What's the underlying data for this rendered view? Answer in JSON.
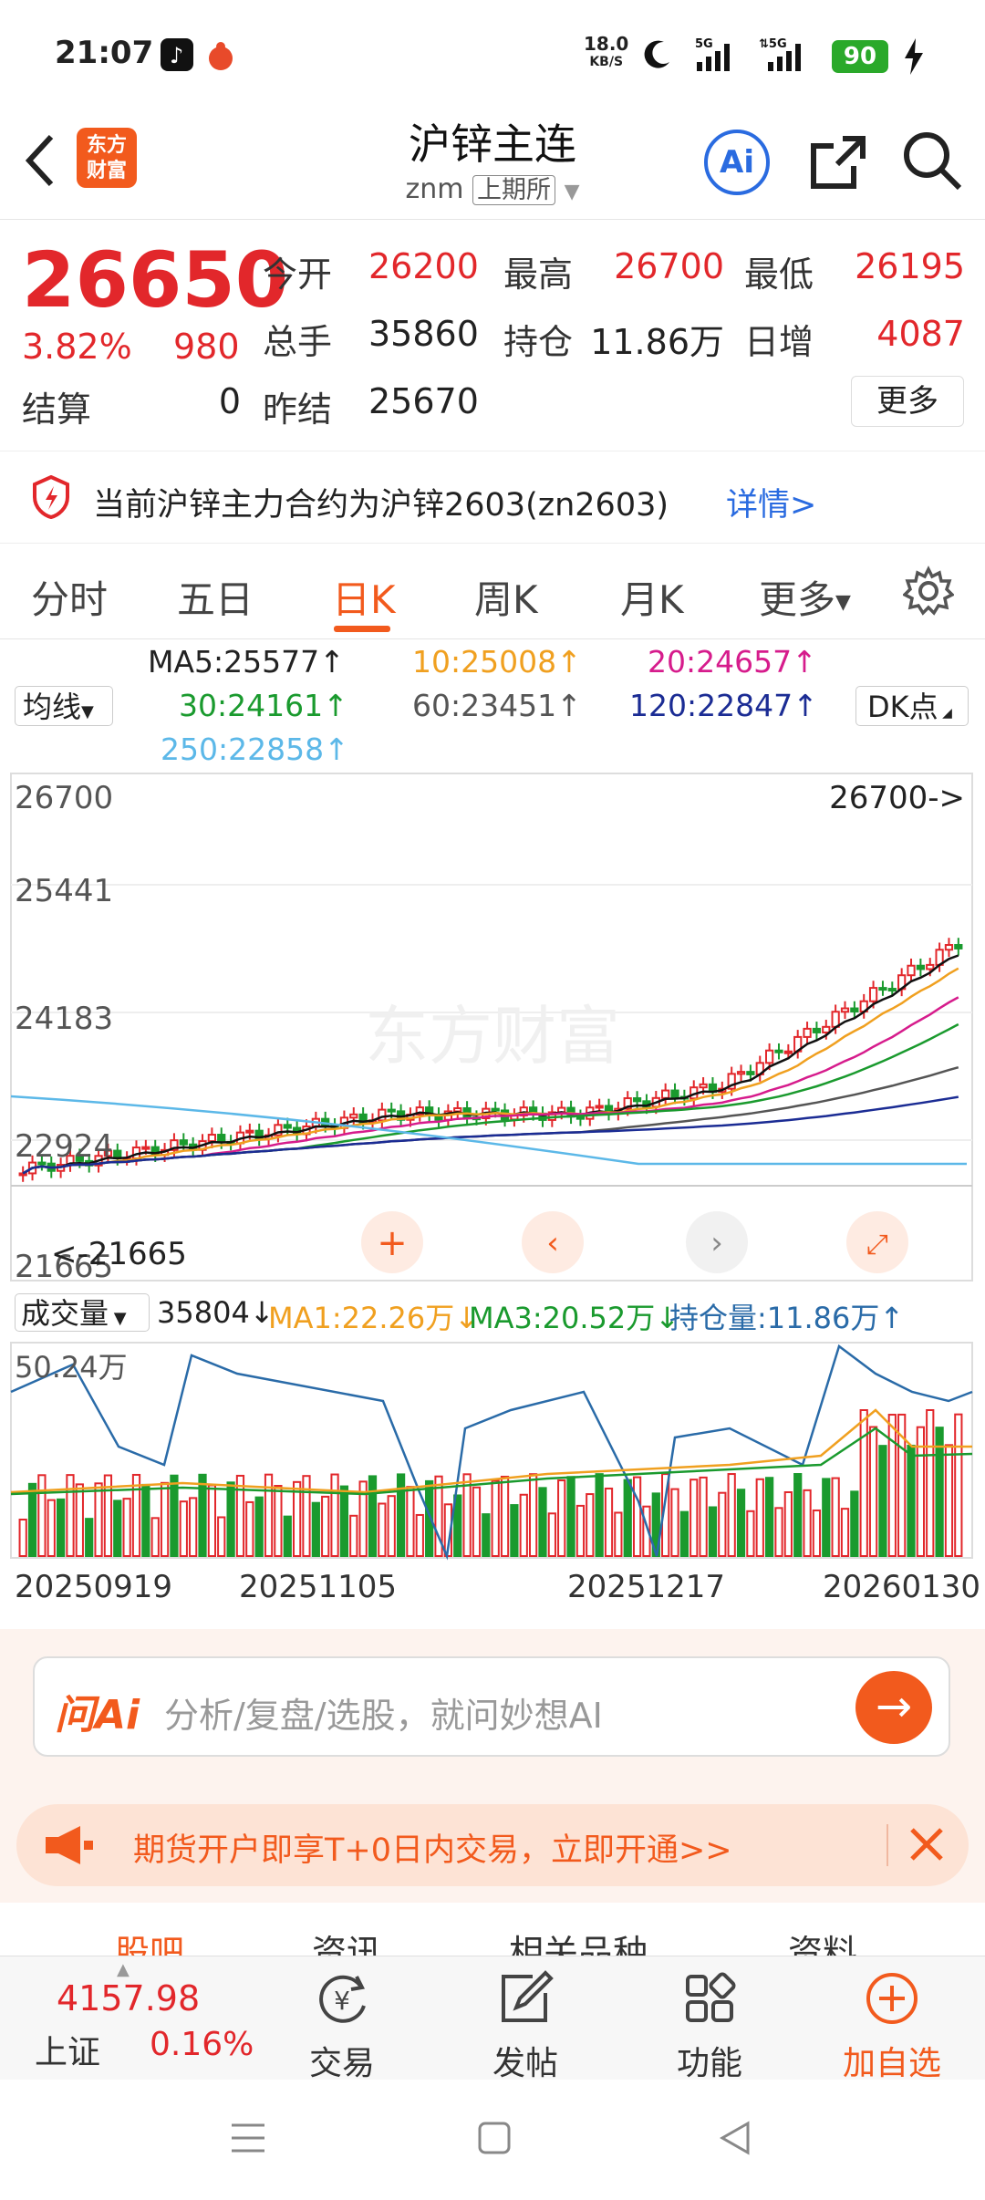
{
  "status": {
    "time": "21:07",
    "net_speed": "18.0",
    "net_unit": "KB/S",
    "signal1": "5G",
    "signal2": "5G",
    "battery": "90"
  },
  "header": {
    "title": "沪锌主连",
    "code": "znm",
    "exchange": "上期所",
    "logo_text_1": "东方",
    "logo_text_2": "财富",
    "ai_label": "Ai"
  },
  "quote": {
    "price": "26650",
    "pct": "3.82%",
    "change": "980",
    "open_label": "今开",
    "open": "26200",
    "high_label": "最高",
    "high": "26700",
    "low_label": "最低",
    "low": "26195",
    "volume_label": "总手",
    "volume": "35860",
    "oi_label": "持仓",
    "oi": "11.86万",
    "daily_inc_label": "日增",
    "daily_inc": "4087",
    "settle_label": "结算",
    "settle": "0",
    "prev_settle_label": "昨结",
    "prev_settle": "25670",
    "more_label": "更多"
  },
  "notice": {
    "text": "当前沪锌主力合约为沪锌2603(zn2603)",
    "link": "详情>"
  },
  "tabs": [
    "分时",
    "五日",
    "日K",
    "周K",
    "月K",
    "更多"
  ],
  "ma_legend": {
    "select": "均线",
    "ma5": "MA5:25577↑",
    "ma10": "10:25008↑",
    "ma20": "20:24657↑",
    "ma30": "30:24161↑",
    "ma60": "60:23451↑",
    "ma120": "120:22847↑",
    "ma250": "250:22858↑",
    "dk_select": "DK点",
    "colors": {
      "ma5": "#111111",
      "ma10": "#f0a020",
      "ma20": "#d61c8c",
      "ma30": "#1a9a2e",
      "ma60": "#555555",
      "ma120": "#1b2c94",
      "ma250": "#5cb8e8"
    }
  },
  "chart_data": {
    "type": "candlestick",
    "y_ticks": [
      "26700",
      "25441",
      "24183",
      "22924",
      "21665"
    ],
    "ylim": [
      21665,
      26700
    ],
    "high_marker": "26700->",
    "low_marker": "21665",
    "watermark": "东方财富"
  },
  "volume": {
    "select": "成交量",
    "value": "35804↓",
    "ma1": "MA1:22.26万↓",
    "ma3": "MA3:20.52万↓",
    "oi": "持仓量:11.86万↑",
    "max_label": "50.24万"
  },
  "dates": [
    "20250919",
    "20251105",
    "20251217",
    "20260130"
  ],
  "ai": {
    "brand": "问Ai",
    "placeholder": "分析/复盘/选股，就问妙想AI"
  },
  "promo": {
    "text": "期货开户即享T+0日内交易，立即开通>>"
  },
  "section_tabs": [
    "股吧",
    "资讯",
    "相关品种",
    "资料"
  ],
  "bottom_nav": {
    "index_price": "4157.98",
    "index_name": "上证",
    "index_pct": "0.16%",
    "trade": "交易",
    "post": "发帖",
    "functions": "功能",
    "add_watch": "加自选"
  }
}
